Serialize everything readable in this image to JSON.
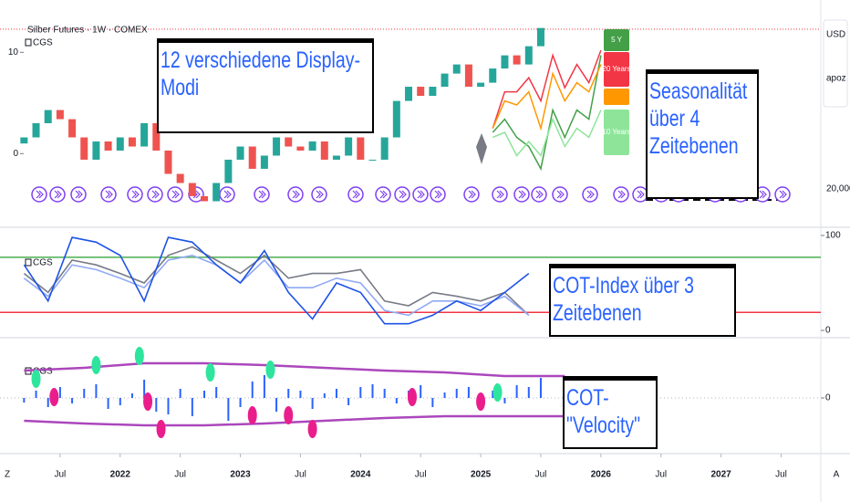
{
  "chart_data": [
    {
      "type": "candlestick",
      "title": "Silber Futures · 1W · COMEX",
      "indicator": "CGS",
      "right_labels": [
        "USD",
        "apoz",
        "20,000"
      ],
      "annotations": [
        "12 verschiedene Display-Modi",
        "Seasonalität über 4 Zeitebenen"
      ],
      "xlim": [
        2021.0,
        2027.83
      ],
      "ylim": [
        -7,
        13
      ],
      "yticks": [
        0,
        10
      ],
      "up_color": "#26a69a",
      "down_color": "#ef5350",
      "x": [
        2021.2,
        2021.3,
        2021.4,
        2021.5,
        2021.6,
        2021.7,
        2021.8,
        2021.9,
        2022.0,
        2022.1,
        2022.2,
        2022.3,
        2022.4,
        2022.5,
        2022.6,
        2022.7,
        2022.8,
        2022.9,
        2023.0,
        2023.1,
        2023.2,
        2023.3,
        2023.4,
        2023.5,
        2023.6,
        2023.7,
        2023.8,
        2023.9,
        2024.0,
        2024.1,
        2024.2,
        2024.3,
        2024.4,
        2024.5,
        2024.6,
        2024.7,
        2024.8,
        2024.9,
        2025.0,
        2025.1,
        2025.2,
        2025.3,
        2025.4,
        2025.5
      ],
      "open": [
        1.0,
        1.6,
        3.0,
        4.3,
        3.4,
        1.6,
        -0.6,
        1.2,
        0.3,
        1.6,
        0.7,
        3.0,
        0.3,
        -2.0,
        -2.9,
        -4.2,
        -4.7,
        -2.9,
        -0.6,
        0.7,
        -1.5,
        -0.2,
        1.6,
        0.7,
        0.3,
        1.2,
        -0.6,
        -0.2,
        1.6,
        -0.6,
        -0.6,
        1.6,
        5.2,
        6.6,
        5.7,
        6.6,
        7.9,
        8.8,
        6.6,
        7.0,
        8.4,
        9.7,
        8.8,
        10.6
      ],
      "close": [
        1.6,
        3.0,
        4.3,
        3.4,
        1.6,
        -0.6,
        1.2,
        0.3,
        1.6,
        0.7,
        3.0,
        0.3,
        -2.0,
        -2.9,
        -4.2,
        -4.7,
        -2.9,
        -0.6,
        0.7,
        -1.5,
        -0.2,
        1.6,
        0.7,
        0.3,
        1.2,
        -0.6,
        -0.2,
        1.6,
        -0.6,
        -0.6,
        1.6,
        5.2,
        6.6,
        5.7,
        6.6,
        7.9,
        8.8,
        6.6,
        7.0,
        8.4,
        9.7,
        8.8,
        10.6,
        12.4
      ],
      "series": [
        {
          "name": "5 Y",
          "color": "#43a047",
          "x": [
            2025.1,
            2025.2,
            2025.3,
            2025.4,
            2025.5,
            2025.6,
            2025.7,
            2025.8,
            2025.9,
            2026.0
          ],
          "values": [
            2.1,
            3.4,
            1.6,
            0.7,
            -1.5,
            4.3,
            1.6,
            4.3,
            3.4,
            9.7
          ]
        },
        {
          "name": "20 Years",
          "color": "#f23645",
          "x": [
            2025.1,
            2025.2,
            2025.3,
            2025.4,
            2025.5,
            2025.6,
            2025.7,
            2025.8,
            2025.9,
            2026.0
          ],
          "values": [
            2.5,
            6.1,
            6.1,
            7.5,
            5.2,
            9.7,
            6.5,
            8.8,
            7.0,
            10.2
          ]
        },
        {
          "color": "#ff9800",
          "x": [
            2025.1,
            2025.2,
            2025.3,
            2025.4,
            2025.5,
            2025.6,
            2025.7,
            2025.8,
            2025.9,
            2026.0
          ],
          "values": [
            2.5,
            5.2,
            4.8,
            6.1,
            2.5,
            7.9,
            5.2,
            7.0,
            6.1,
            8.8
          ]
        },
        {
          "name": "10 Years",
          "color": "#8ee59a",
          "x": [
            2025.1,
            2025.2,
            2025.3,
            2025.4,
            2025.5,
            2025.6,
            2025.7,
            2025.8,
            2025.9,
            2026.0
          ],
          "values": [
            1.6,
            2.1,
            -0.2,
            1.2,
            -0.2,
            3.4,
            0.7,
            2.5,
            1.6,
            4.3
          ]
        }
      ]
    },
    {
      "type": "line",
      "indicator": "CGS",
      "annotations": [
        "COT-Index über 3 Zeitebenen"
      ],
      "xlim": [
        2021.0,
        2027.83
      ],
      "ylim": [
        0,
        100
      ],
      "yticks": [
        0,
        100
      ],
      "hlines": [
        {
          "value": 77,
          "color": "#4caf50"
        },
        {
          "value": 19,
          "color": "#f23645"
        }
      ],
      "x": [
        2021.2,
        2021.4,
        2021.6,
        2021.8,
        2022.0,
        2022.2,
        2022.4,
        2022.6,
        2022.8,
        2023.0,
        2023.2,
        2023.4,
        2023.6,
        2023.8,
        2024.0,
        2024.2,
        2024.4,
        2024.6,
        2024.8,
        2025.0,
        2025.2,
        2025.4
      ],
      "series": [
        {
          "color": "#787b86",
          "values": [
            60,
            40,
            74,
            69,
            60,
            50,
            79,
            88,
            74,
            60,
            79,
            55,
            60,
            60,
            64,
            31,
            26,
            40,
            36,
            31,
            40,
            16
          ]
        },
        {
          "color": "#90a9f5",
          "values": [
            55,
            36,
            69,
            64,
            55,
            45,
            74,
            79,
            69,
            50,
            74,
            45,
            45,
            55,
            50,
            21,
            16,
            31,
            31,
            26,
            36,
            16
          ]
        },
        {
          "color": "#1e53e5",
          "values": [
            69,
            31,
            98,
            93,
            79,
            31,
            98,
            93,
            69,
            50,
            84,
            40,
            12,
            50,
            40,
            7,
            7,
            16,
            31,
            21,
            40,
            60
          ]
        }
      ]
    },
    {
      "type": "bar",
      "indicator": "CGS",
      "annotations": [
        "COT-\"Velocity\""
      ],
      "xlim": [
        2021.0,
        2027.83
      ],
      "ylim": [
        -60,
        60
      ],
      "yticks": [
        0
      ],
      "grid": true,
      "xticks": [
        {
          "value": 2021.5,
          "label": "Jul"
        },
        2022,
        {
          "value": 2022.5,
          "label": "Jul"
        },
        2023,
        {
          "value": 2023.5,
          "label": "Jul"
        },
        2024,
        {
          "value": 2024.5,
          "label": "Jul"
        },
        2025,
        {
          "value": 2025.5,
          "label": "Jul"
        },
        2026,
        {
          "value": 2026.5,
          "label": "Jul"
        },
        2027,
        {
          "value": 2027.5,
          "label": "Jul"
        }
      ],
      "corner_labels": [
        "Z",
        "A"
      ],
      "color": "#2962ff",
      "x": [
        2021.2,
        2021.3,
        2021.4,
        2021.5,
        2021.6,
        2021.7,
        2021.8,
        2021.9,
        2022.0,
        2022.1,
        2022.2,
        2022.3,
        2022.4,
        2022.5,
        2022.6,
        2022.7,
        2022.8,
        2022.9,
        2023.0,
        2023.1,
        2023.2,
        2023.3,
        2023.4,
        2023.5,
        2023.6,
        2023.7,
        2023.8,
        2023.9,
        2024.0,
        2024.1,
        2024.2,
        2024.3,
        2024.4,
        2024.5,
        2024.6,
        2024.7,
        2024.8,
        2024.9,
        2025.0,
        2025.1,
        2025.2,
        2025.3,
        2025.4,
        2025.5
      ],
      "values": [
        -5,
        8,
        -10,
        12,
        -6,
        10,
        15,
        -12,
        -8,
        5,
        20,
        -15,
        -18,
        10,
        -20,
        8,
        12,
        -25,
        -10,
        18,
        25,
        -15,
        10,
        8,
        -12,
        5,
        10,
        -8,
        12,
        15,
        10,
        -6,
        8,
        14,
        -10,
        6,
        10,
        12,
        -10,
        8,
        -6,
        14,
        12,
        22
      ],
      "bands": [
        {
          "color": "#ab47bc",
          "x": [
            2021.2,
            2021.7,
            2022.2,
            2022.7,
            2023.2,
            2023.7,
            2024.2,
            2024.7,
            2025.2,
            2025.7
          ],
          "values": [
            30,
            33,
            38,
            38,
            36,
            33,
            30,
            28,
            24,
            24
          ]
        },
        {
          "color": "#ab47bc",
          "x": [
            2021.2,
            2021.7,
            2022.2,
            2022.7,
            2023.2,
            2023.7,
            2024.2,
            2024.7,
            2025.2,
            2025.7
          ],
          "values": [
            -25,
            -28,
            -30,
            -30,
            -28,
            -25,
            -22,
            -20,
            -20,
            -20
          ]
        }
      ],
      "dots": [
        {
          "color": "#2ee59d",
          "x": [
            2021.3,
            2021.8,
            2022.16,
            2022.75,
            2023.25,
            2025.14
          ],
          "values": [
            21,
            36,
            46,
            28,
            31,
            6
          ]
        },
        {
          "color": "#e91e8c",
          "x": [
            2021.45,
            2022.23,
            2022.34,
            2023.1,
            2023.4,
            2023.6,
            2024.43,
            2025.0
          ],
          "values": [
            1,
            -4,
            -34,
            -19,
            -19,
            -34,
            1,
            -4
          ]
        }
      ]
    }
  ]
}
